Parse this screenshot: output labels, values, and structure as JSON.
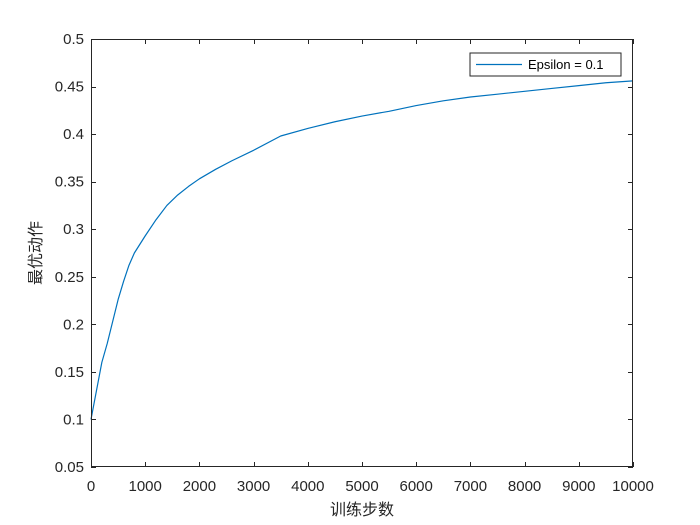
{
  "colors": {
    "series": "#0072BD",
    "axes": "#262626",
    "background": "#ffffff"
  },
  "chart_data": {
    "type": "line",
    "title": "",
    "xlabel": "训练步数",
    "ylabel": "最优动作",
    "xlim": [
      0,
      10000
    ],
    "ylim": [
      0.05,
      0.5
    ],
    "xticks": [
      0,
      1000,
      2000,
      3000,
      4000,
      5000,
      6000,
      7000,
      8000,
      9000,
      10000
    ],
    "xtick_labels": [
      "0",
      "1000",
      "2000",
      "3000",
      "4000",
      "5000",
      "6000",
      "7000",
      "8000",
      "9000",
      "10000"
    ],
    "yticks": [
      0.05,
      0.1,
      0.15,
      0.2,
      0.25,
      0.3,
      0.35,
      0.4,
      0.45,
      0.5
    ],
    "ytick_labels": [
      "0.05",
      "0.1",
      "0.15",
      "0.2",
      "0.25",
      "0.3",
      "0.35",
      "0.4",
      "0.45",
      "0.5"
    ],
    "grid": false,
    "box": true,
    "legend": {
      "placement": "top-right"
    },
    "series": [
      {
        "name": "Epsilon = 0.1",
        "x": [
          0,
          100,
          200,
          300,
          400,
          500,
          600,
          700,
          800,
          1000,
          1200,
          1400,
          1600,
          1800,
          2000,
          2300,
          2600,
          3000,
          3500,
          4000,
          4500,
          5000,
          5500,
          6000,
          6500,
          7000,
          7500,
          8000,
          8500,
          9000,
          9500,
          10000
        ],
        "y": [
          0.1,
          0.13,
          0.16,
          0.18,
          0.203,
          0.226,
          0.245,
          0.262,
          0.275,
          0.293,
          0.31,
          0.325,
          0.336,
          0.345,
          0.353,
          0.363,
          0.372,
          0.383,
          0.398,
          0.406,
          0.413,
          0.419,
          0.424,
          0.43,
          0.435,
          0.439,
          0.442,
          0.445,
          0.448,
          0.451,
          0.454,
          0.456
        ]
      }
    ]
  }
}
